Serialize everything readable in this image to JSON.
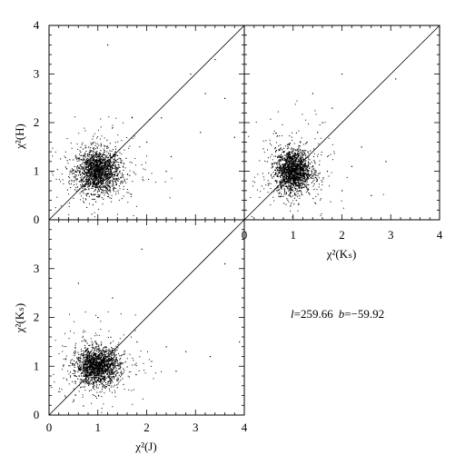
{
  "chart_data": [
    {
      "id": "top-left",
      "type": "scatter",
      "xlabel": "",
      "ylabel": "χ²(H)",
      "xlim": [
        0,
        4
      ],
      "ylim": [
        0,
        4
      ],
      "x_tick_labels": [],
      "y_tick_labels": [
        "0",
        "1",
        "2",
        "3",
        "4"
      ],
      "reference_line": "y = x",
      "cluster": {
        "center_x": 1.0,
        "center_y": 1.0,
        "spread_x": 0.22,
        "spread_y": 0.22
      },
      "outliers": [
        {
          "x": 1.7,
          "y": 2.1
        },
        {
          "x": 2.0,
          "y": 1.6
        },
        {
          "x": 2.3,
          "y": 2.1
        },
        {
          "x": 2.5,
          "y": 1.3
        },
        {
          "x": 2.9,
          "y": 3.0
        },
        {
          "x": 3.2,
          "y": 2.6
        },
        {
          "x": 3.4,
          "y": 3.3
        },
        {
          "x": 3.6,
          "y": 2.5
        },
        {
          "x": 3.1,
          "y": 1.8
        },
        {
          "x": 1.2,
          "y": 3.6
        },
        {
          "x": 2.4,
          "y": 1.0
        },
        {
          "x": 3.8,
          "y": 1.7
        }
      ]
    },
    {
      "id": "top-right",
      "type": "scatter",
      "xlabel": "χ²(Kₛ)",
      "ylabel": "",
      "xlim": [
        0,
        4
      ],
      "ylim": [
        0,
        4
      ],
      "x_tick_labels": [
        "0",
        "1",
        "2",
        "3",
        "4"
      ],
      "y_tick_labels": [],
      "reference_line": "y = x",
      "cluster": {
        "center_x": 1.0,
        "center_y": 1.0,
        "spread_x": 0.18,
        "spread_y": 0.22
      },
      "outliers": [
        {
          "x": 1.6,
          "y": 2.0
        },
        {
          "x": 1.8,
          "y": 2.3
        },
        {
          "x": 2.0,
          "y": 0.6
        },
        {
          "x": 2.2,
          "y": 1.1
        },
        {
          "x": 2.6,
          "y": 0.5
        },
        {
          "x": 2.9,
          "y": 1.2
        },
        {
          "x": 1.4,
          "y": 2.6
        },
        {
          "x": 1.7,
          "y": 1.0
        },
        {
          "x": 3.1,
          "y": 2.9
        },
        {
          "x": 2.0,
          "y": 3.0
        },
        {
          "x": 1.5,
          "y": 1.8
        },
        {
          "x": 2.4,
          "y": 1.5
        }
      ]
    },
    {
      "id": "bottom-left",
      "type": "scatter",
      "xlabel": "χ²(J)",
      "ylabel": "χ²(Kₛ)",
      "xlim": [
        0,
        4
      ],
      "ylim": [
        0,
        4
      ],
      "x_tick_labels": [
        "0",
        "1",
        "2",
        "3",
        "4"
      ],
      "y_tick_labels": [
        "0",
        "1",
        "2",
        "3"
      ],
      "reference_line": "y = x",
      "cluster": {
        "center_x": 1.0,
        "center_y": 1.0,
        "spread_x": 0.22,
        "spread_y": 0.18
      },
      "outliers": [
        {
          "x": 0.6,
          "y": 2.7
        },
        {
          "x": 1.0,
          "y": 2.0
        },
        {
          "x": 1.8,
          "y": 1.5
        },
        {
          "x": 2.1,
          "y": 1.1
        },
        {
          "x": 2.4,
          "y": 1.4
        },
        {
          "x": 2.8,
          "y": 1.3
        },
        {
          "x": 3.3,
          "y": 1.2
        },
        {
          "x": 1.9,
          "y": 3.4
        },
        {
          "x": 3.6,
          "y": 3.1
        },
        {
          "x": 3.9,
          "y": 1.5
        },
        {
          "x": 1.3,
          "y": 2.4
        },
        {
          "x": 2.6,
          "y": 0.9
        }
      ]
    }
  ],
  "annotation": {
    "l_symbol": "l",
    "l_text": "=259.66",
    "b_symbol": "b",
    "b_text": "=−59.92"
  }
}
